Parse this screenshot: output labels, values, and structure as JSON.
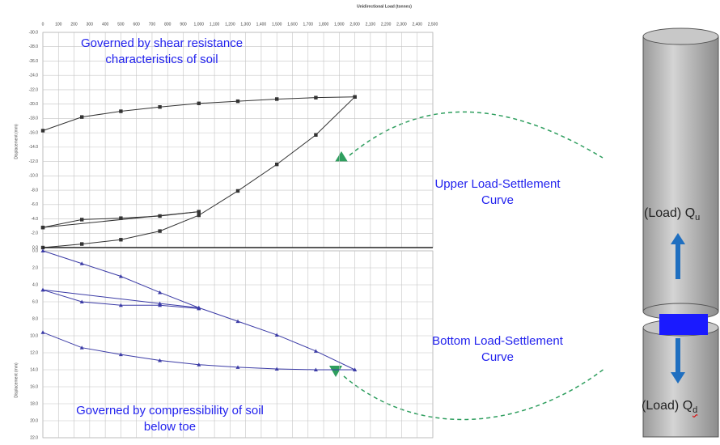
{
  "chart_data": [
    {
      "type": "line",
      "title": "Unidirectional Load (tonnes)",
      "y_label": "Displacement (mm)",
      "annotations": [
        "Governed by shear resistance characteristics of soil",
        "Upper Load-Settlement Curve"
      ],
      "xlim": [
        0,
        2500
      ],
      "xticks": [
        0,
        100,
        200,
        300,
        400,
        500,
        600,
        700,
        800,
        900,
        {
          "value": 1000,
          "label": "1,000"
        },
        {
          "value": 1100,
          "label": "1,100"
        },
        {
          "value": 1200,
          "label": "1,200"
        },
        {
          "value": 1300,
          "label": "1,300"
        },
        {
          "value": 1400,
          "label": "1,400"
        },
        {
          "value": 1500,
          "label": "1,500"
        },
        {
          "value": 1600,
          "label": "1,600"
        },
        {
          "value": 1700,
          "label": "1,700"
        },
        {
          "value": 1800,
          "label": "1,800"
        },
        {
          "value": 1900,
          "label": "1,900"
        },
        {
          "value": 2000,
          "label": "2,000"
        },
        {
          "value": 2100,
          "label": "2,100"
        },
        {
          "value": 2200,
          "label": "2,200"
        },
        {
          "value": 2300,
          "label": "2,300"
        },
        {
          "value": 2400,
          "label": "2,400"
        },
        {
          "value": 2500,
          "label": "2,500"
        }
      ],
      "ylim": [
        -30,
        0
      ],
      "y_reversed": true,
      "yticks": [
        {
          "value": -30,
          "label": "-30.0"
        },
        {
          "value": -28,
          "label": "-28.0"
        },
        {
          "value": -26,
          "label": "-26.0"
        },
        {
          "value": -24,
          "label": "-24.0"
        },
        {
          "value": -22,
          "label": "-22.0"
        },
        {
          "value": -20,
          "label": "-20.0"
        },
        {
          "value": -18,
          "label": "-18.0"
        },
        {
          "value": -16,
          "label": "-16.0"
        },
        {
          "value": -14,
          "label": "-14.0"
        },
        {
          "value": -12,
          "label": "-12.0"
        },
        {
          "value": -10,
          "label": "-10.0"
        },
        {
          "value": -8,
          "label": "-8.0"
        },
        {
          "value": -6,
          "label": "-6.0"
        },
        {
          "value": -4,
          "label": "-4.0"
        },
        {
          "value": -2,
          "label": "-2.0"
        },
        {
          "value": 0,
          "label": "0.0"
        }
      ],
      "grid": true,
      "series": [
        {
          "color": "#333333",
          "marker": "square",
          "x": [
            0,
            250,
            500,
            750,
            1000,
            1250,
            1500,
            1750,
            2000
          ],
          "values": [
            0,
            -0.5,
            -1.1,
            -2.3,
            -4.5,
            -7.9,
            -11.6,
            -15.7,
            -21.0
          ]
        },
        {
          "color": "#333333",
          "marker": "square",
          "x": [
            2000,
            1750,
            1500,
            1250,
            1000,
            750,
            500,
            250,
            0
          ],
          "values": [
            -21.0,
            -20.9,
            -20.7,
            -20.4,
            -20.1,
            -19.6,
            -19.0,
            -18.2,
            -16.3
          ]
        },
        {
          "color": "#333333",
          "marker": "square",
          "x": [
            0,
            250,
            500,
            750,
            1000
          ],
          "values": [
            -2.8,
            -3.9,
            -4.1,
            -4.4,
            -5.0
          ]
        },
        {
          "color": "#333333",
          "marker": "square",
          "x": [
            0,
            1000
          ],
          "values": [
            -2.8,
            -5.0
          ]
        }
      ]
    },
    {
      "type": "line",
      "y_label": "Displacement (mm)",
      "annotations": [
        "Governed by compressibility of soil below toe",
        "Bottom Load-Settlement Curve"
      ],
      "xlim": [
        0,
        2500
      ],
      "ylim": [
        0,
        22
      ],
      "y_reversed": true,
      "yticks": [
        {
          "value": 0,
          "label": "0.0"
        },
        {
          "value": 2,
          "label": "2.0"
        },
        {
          "value": 4,
          "label": "4.0"
        },
        {
          "value": 6,
          "label": "6.0"
        },
        {
          "value": 8,
          "label": "8.0"
        },
        {
          "value": 10,
          "label": "10.0"
        },
        {
          "value": 12,
          "label": "12.0"
        },
        {
          "value": 14,
          "label": "14.0"
        },
        {
          "value": 16,
          "label": "16.0"
        },
        {
          "value": 18,
          "label": "18.0"
        },
        {
          "value": 20,
          "label": "20.0"
        },
        {
          "value": 22,
          "label": "22.0"
        }
      ],
      "grid": true,
      "series": [
        {
          "color": "#3b3ba6",
          "marker": "triangle",
          "x": [
            0,
            250,
            500,
            750,
            1000,
            1250,
            1500,
            1750,
            2000
          ],
          "values": [
            0,
            1.5,
            3.0,
            4.9,
            6.7,
            8.3,
            9.9,
            11.8,
            14.0
          ]
        },
        {
          "color": "#3b3ba6",
          "marker": "triangle",
          "x": [
            0,
            250,
            500,
            750,
            1000
          ],
          "values": [
            4.6,
            6.0,
            6.4,
            6.4,
            6.8
          ]
        },
        {
          "color": "#3b3ba6",
          "marker": "triangle",
          "x": [
            0,
            750,
            1000
          ],
          "values": [
            4.6,
            6.2,
            6.7
          ]
        },
        {
          "color": "#3b3ba6",
          "marker": "triangle",
          "x": [
            0,
            250,
            500,
            750,
            1000,
            1250,
            1500,
            1750,
            2000
          ],
          "values": [
            9.6,
            11.4,
            12.2,
            12.9,
            13.4,
            13.7,
            13.9,
            14.0,
            14.0
          ]
        }
      ]
    }
  ],
  "diagram": {
    "upper_load": "(Load) Q",
    "upper_sub": "u",
    "lower_load": "(Load) Q",
    "lower_sub": "d"
  }
}
